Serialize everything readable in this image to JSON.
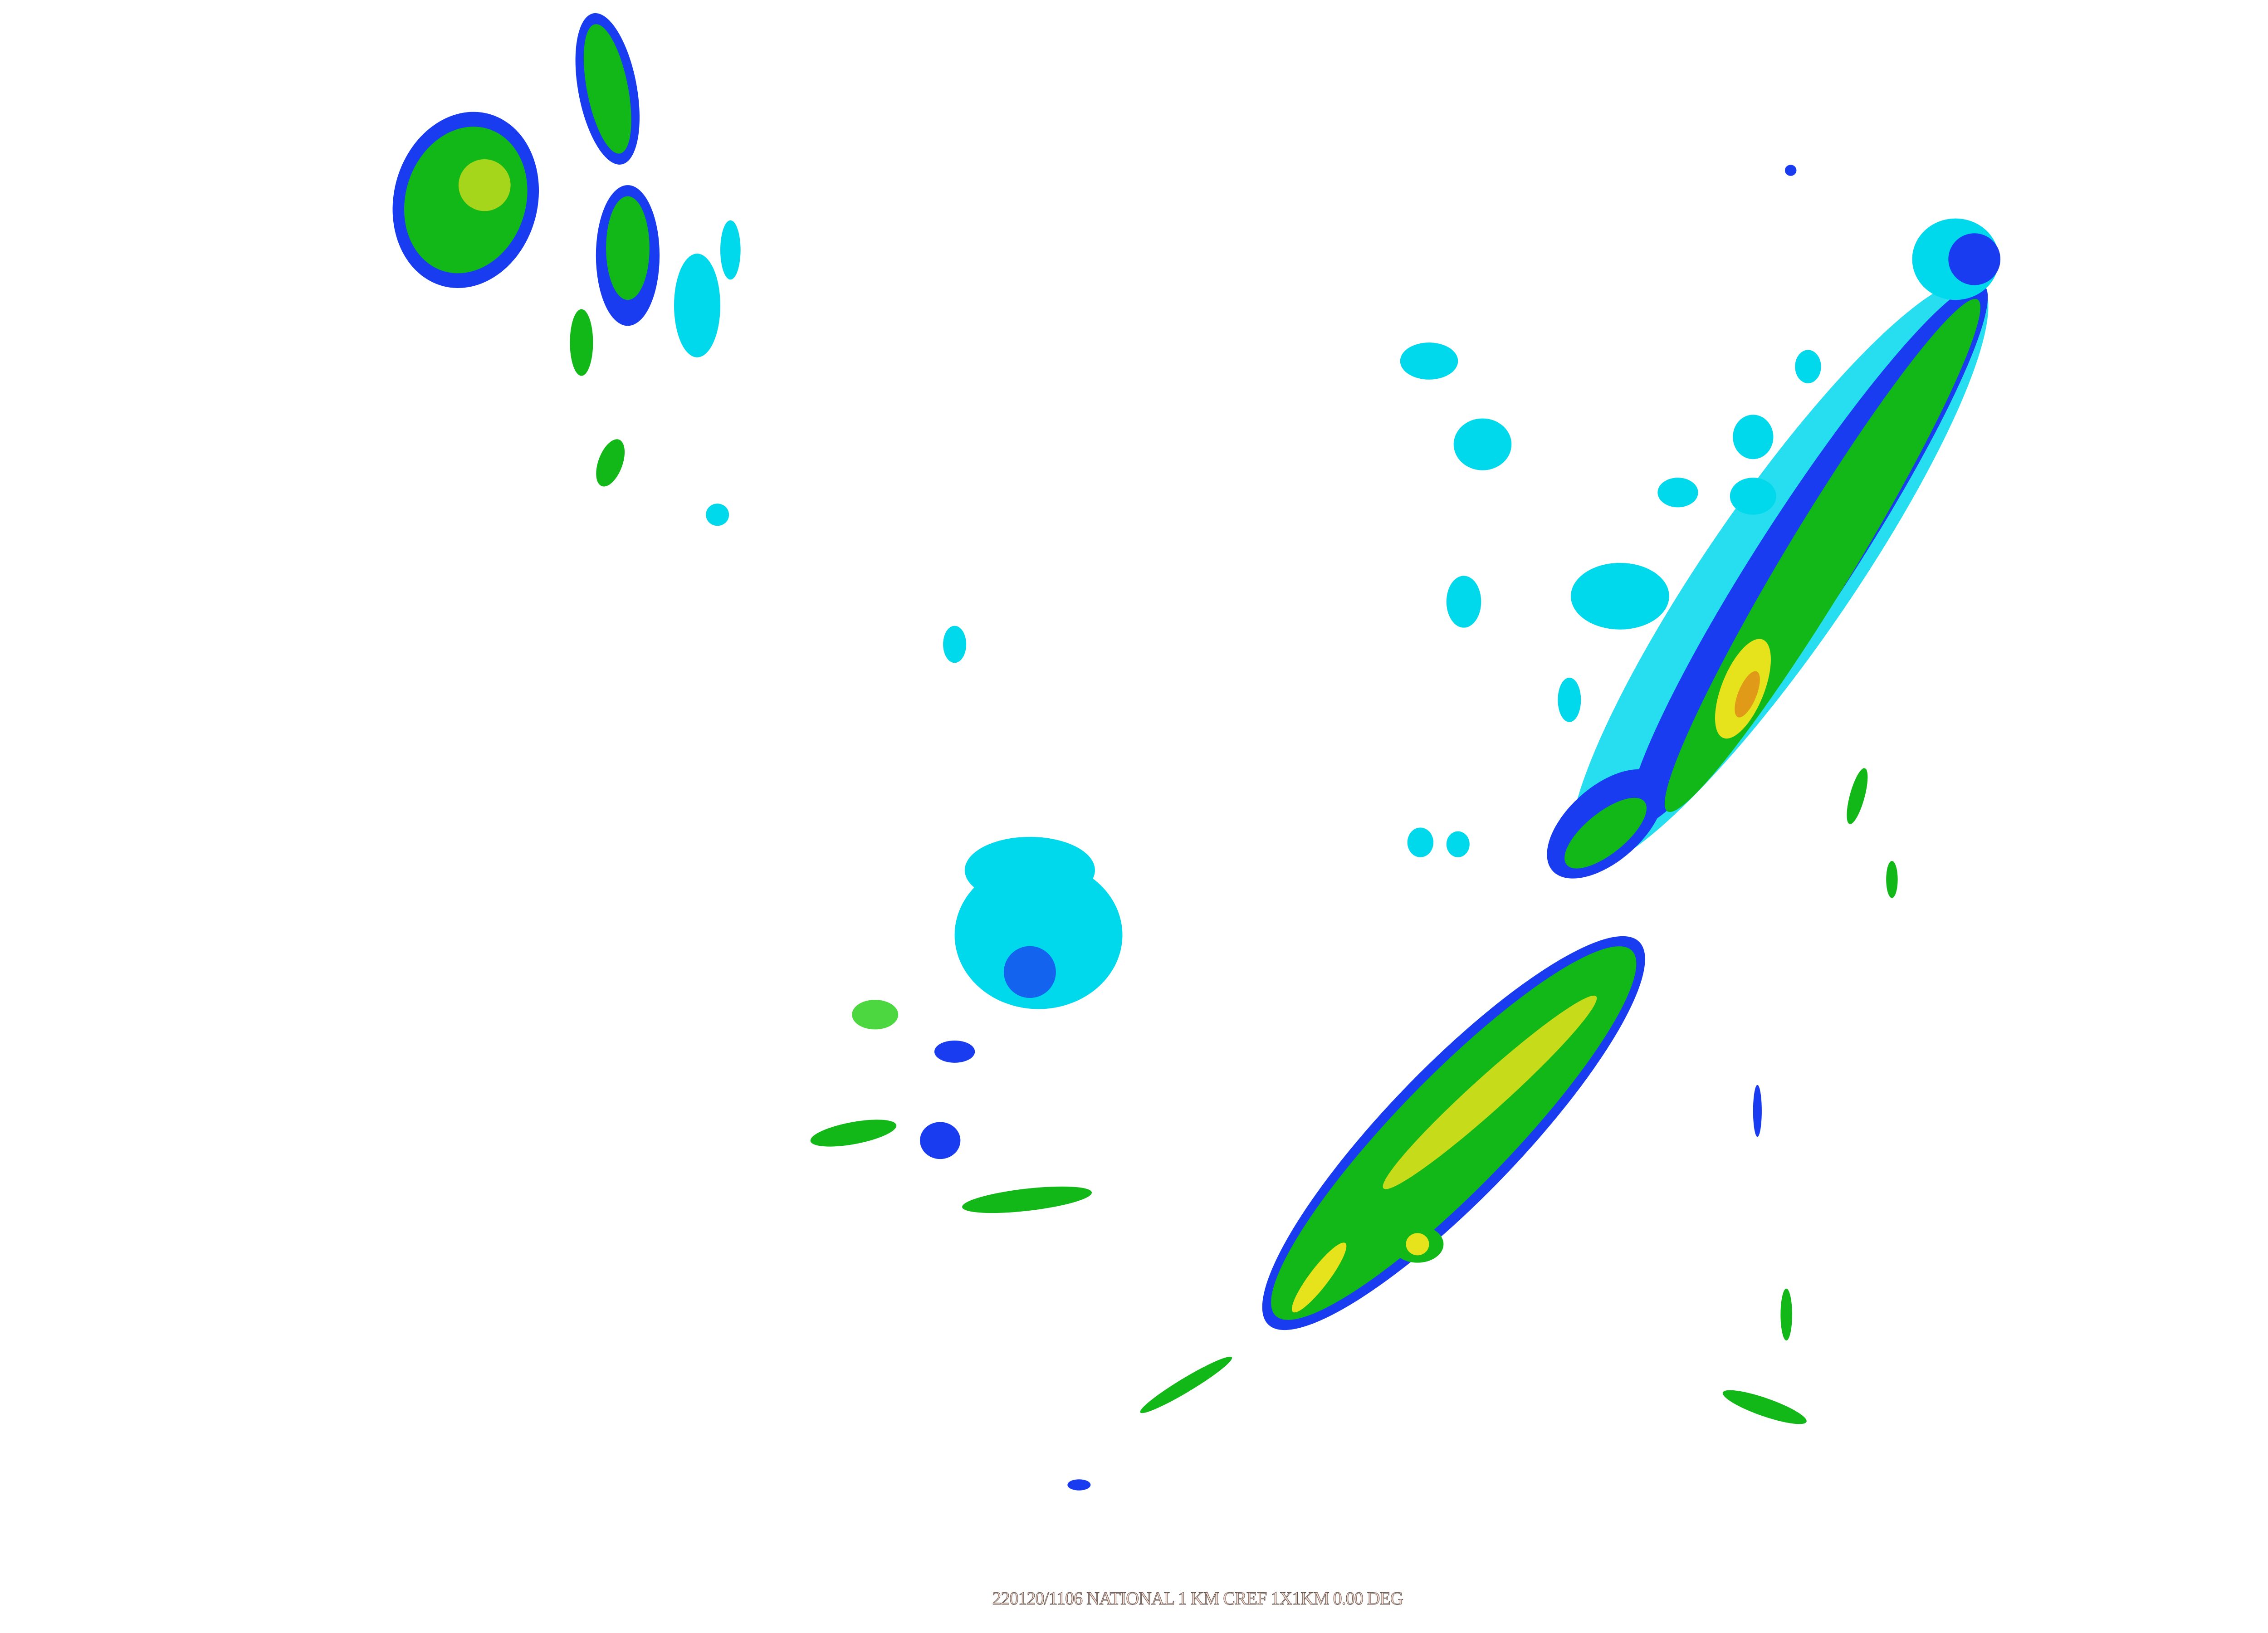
{
  "map": {
    "caption": "220120/1106 NATIONAL  1 KM  CREF  1X1KM 0.00 DEG",
    "product": "composite reflectivity",
    "colors": {
      "light_cyan": "#7ee8f5",
      "cyan": "#00d8ec",
      "blue": "#1a3cf0",
      "green": "#12b818",
      "light_green": "#4cd640",
      "yellow": "#e6e21c",
      "orange": "#e09a18",
      "background": "#ffffff"
    }
  }
}
